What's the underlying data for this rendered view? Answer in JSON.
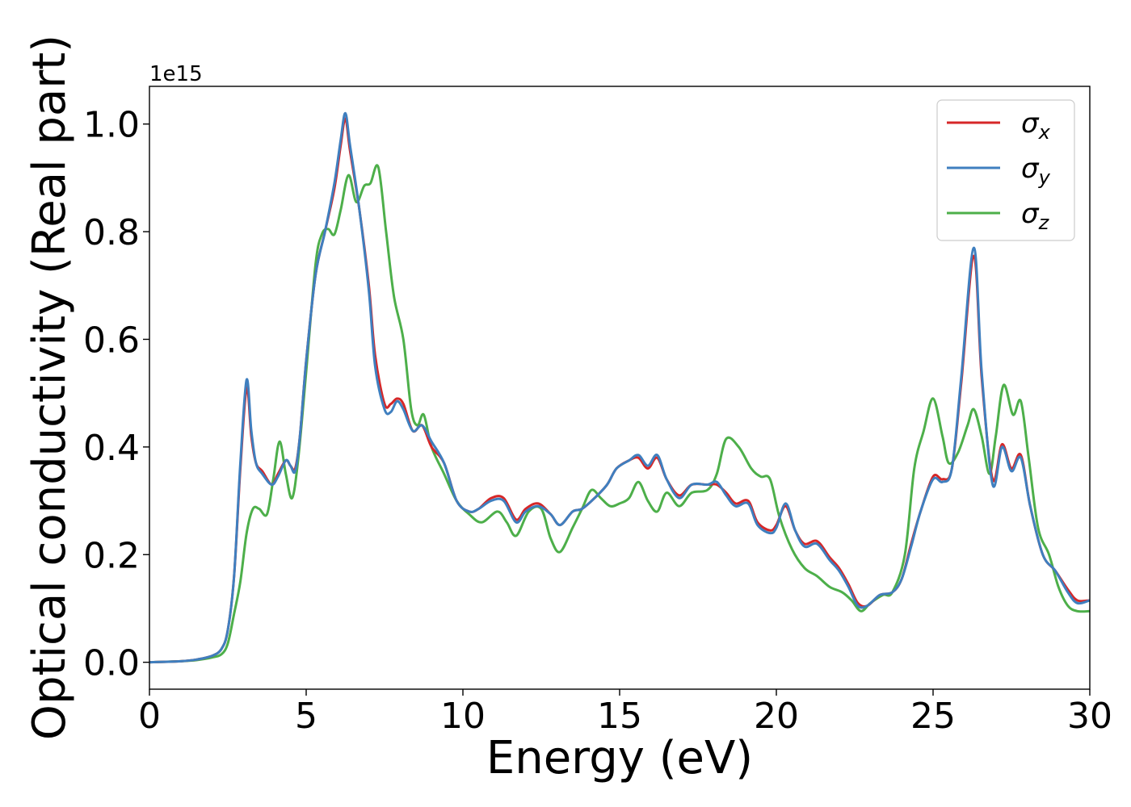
{
  "chart_data": {
    "type": "line",
    "title": "",
    "xlabel": "Energy (eV)",
    "ylabel": "Optical conductivity (Real part)",
    "y_offset_label": "1e15",
    "y_multiplier": 1000000000000000.0,
    "xlim": [
      0,
      30
    ],
    "ylim": [
      -0.05,
      1.07
    ],
    "x_ticks": [
      0,
      5,
      10,
      15,
      20,
      25,
      30
    ],
    "x_tick_labels": [
      "0",
      "5",
      "10",
      "15",
      "20",
      "25",
      "30"
    ],
    "y_ticks": [
      0.0,
      0.2,
      0.4,
      0.6,
      0.8,
      1.0
    ],
    "y_tick_labels": [
      "0.0",
      "0.2",
      "0.4",
      "0.6",
      "0.8",
      "1.0"
    ],
    "grid": false,
    "legend_position": "top-right",
    "series": [
      {
        "name": "σx",
        "legend_symbol": "σ",
        "legend_subscript": "x",
        "color": "#d62728",
        "points": [
          [
            0,
            0.0
          ],
          [
            1,
            0.002
          ],
          [
            1.5,
            0.005
          ],
          [
            2,
            0.012
          ],
          [
            2.3,
            0.025
          ],
          [
            2.5,
            0.06
          ],
          [
            2.7,
            0.16
          ],
          [
            2.9,
            0.36
          ],
          [
            3.1,
            0.51
          ],
          [
            3.25,
            0.42
          ],
          [
            3.4,
            0.37
          ],
          [
            3.6,
            0.355
          ],
          [
            3.9,
            0.33
          ],
          [
            4.1,
            0.35
          ],
          [
            4.35,
            0.375
          ],
          [
            4.5,
            0.365
          ],
          [
            4.65,
            0.36
          ],
          [
            4.8,
            0.42
          ],
          [
            5.0,
            0.56
          ],
          [
            5.3,
            0.72
          ],
          [
            5.6,
            0.8
          ],
          [
            5.9,
            0.88
          ],
          [
            6.1,
            0.96
          ],
          [
            6.25,
            1.01
          ],
          [
            6.4,
            0.95
          ],
          [
            6.7,
            0.84
          ],
          [
            7.0,
            0.7
          ],
          [
            7.2,
            0.57
          ],
          [
            7.5,
            0.48
          ],
          [
            7.7,
            0.48
          ],
          [
            7.9,
            0.49
          ],
          [
            8.1,
            0.48
          ],
          [
            8.4,
            0.43
          ],
          [
            8.7,
            0.44
          ],
          [
            9.0,
            0.4
          ],
          [
            9.4,
            0.37
          ],
          [
            9.8,
            0.3
          ],
          [
            10.2,
            0.28
          ],
          [
            10.5,
            0.285
          ],
          [
            10.9,
            0.305
          ],
          [
            11.3,
            0.305
          ],
          [
            11.7,
            0.265
          ],
          [
            12.0,
            0.285
          ],
          [
            12.4,
            0.295
          ],
          [
            12.8,
            0.275
          ],
          [
            13.1,
            0.255
          ],
          [
            13.5,
            0.28
          ],
          [
            13.8,
            0.285
          ],
          [
            14.2,
            0.305
          ],
          [
            14.6,
            0.33
          ],
          [
            14.9,
            0.36
          ],
          [
            15.3,
            0.375
          ],
          [
            15.6,
            0.38
          ],
          [
            15.9,
            0.36
          ],
          [
            16.2,
            0.38
          ],
          [
            16.5,
            0.34
          ],
          [
            16.9,
            0.31
          ],
          [
            17.3,
            0.33
          ],
          [
            17.8,
            0.33
          ],
          [
            18.1,
            0.33
          ],
          [
            18.4,
            0.315
          ],
          [
            18.7,
            0.295
          ],
          [
            19.1,
            0.3
          ],
          [
            19.4,
            0.26
          ],
          [
            19.8,
            0.245
          ],
          [
            20.0,
            0.255
          ],
          [
            20.3,
            0.29
          ],
          [
            20.6,
            0.245
          ],
          [
            20.9,
            0.22
          ],
          [
            21.3,
            0.225
          ],
          [
            21.7,
            0.195
          ],
          [
            22.0,
            0.175
          ],
          [
            22.3,
            0.145
          ],
          [
            22.6,
            0.11
          ],
          [
            22.9,
            0.105
          ],
          [
            23.3,
            0.125
          ],
          [
            23.7,
            0.13
          ],
          [
            24.0,
            0.155
          ],
          [
            24.3,
            0.22
          ],
          [
            24.6,
            0.28
          ],
          [
            25.0,
            0.345
          ],
          [
            25.3,
            0.34
          ],
          [
            25.6,
            0.36
          ],
          [
            25.9,
            0.52
          ],
          [
            26.3,
            0.755
          ],
          [
            26.55,
            0.53
          ],
          [
            26.9,
            0.34
          ],
          [
            27.2,
            0.405
          ],
          [
            27.5,
            0.36
          ],
          [
            27.8,
            0.385
          ],
          [
            28.1,
            0.29
          ],
          [
            28.5,
            0.2
          ],
          [
            28.9,
            0.17
          ],
          [
            29.3,
            0.135
          ],
          [
            29.6,
            0.115
          ],
          [
            30,
            0.115
          ]
        ]
      },
      {
        "name": "σy",
        "legend_symbol": "σ",
        "legend_subscript": "y",
        "color": "#3f7fbf",
        "points": [
          [
            0,
            0.0
          ],
          [
            1,
            0.002
          ],
          [
            1.5,
            0.005
          ],
          [
            2,
            0.012
          ],
          [
            2.3,
            0.025
          ],
          [
            2.5,
            0.06
          ],
          [
            2.7,
            0.16
          ],
          [
            2.9,
            0.37
          ],
          [
            3.1,
            0.525
          ],
          [
            3.25,
            0.43
          ],
          [
            3.4,
            0.37
          ],
          [
            3.6,
            0.35
          ],
          [
            3.9,
            0.33
          ],
          [
            4.1,
            0.345
          ],
          [
            4.35,
            0.375
          ],
          [
            4.5,
            0.365
          ],
          [
            4.65,
            0.355
          ],
          [
            4.8,
            0.42
          ],
          [
            5.0,
            0.56
          ],
          [
            5.3,
            0.72
          ],
          [
            5.6,
            0.8
          ],
          [
            5.9,
            0.89
          ],
          [
            6.1,
            0.97
          ],
          [
            6.25,
            1.02
          ],
          [
            6.4,
            0.96
          ],
          [
            6.7,
            0.84
          ],
          [
            7.0,
            0.69
          ],
          [
            7.2,
            0.55
          ],
          [
            7.5,
            0.47
          ],
          [
            7.7,
            0.465
          ],
          [
            7.9,
            0.485
          ],
          [
            8.1,
            0.47
          ],
          [
            8.4,
            0.43
          ],
          [
            8.7,
            0.44
          ],
          [
            9.0,
            0.41
          ],
          [
            9.4,
            0.37
          ],
          [
            9.8,
            0.3
          ],
          [
            10.2,
            0.28
          ],
          [
            10.5,
            0.285
          ],
          [
            10.9,
            0.3
          ],
          [
            11.3,
            0.3
          ],
          [
            11.7,
            0.26
          ],
          [
            12.0,
            0.28
          ],
          [
            12.4,
            0.29
          ],
          [
            12.8,
            0.275
          ],
          [
            13.1,
            0.255
          ],
          [
            13.5,
            0.28
          ],
          [
            13.8,
            0.285
          ],
          [
            14.2,
            0.305
          ],
          [
            14.6,
            0.33
          ],
          [
            14.9,
            0.36
          ],
          [
            15.3,
            0.375
          ],
          [
            15.6,
            0.385
          ],
          [
            15.9,
            0.365
          ],
          [
            16.2,
            0.385
          ],
          [
            16.5,
            0.34
          ],
          [
            16.9,
            0.305
          ],
          [
            17.3,
            0.33
          ],
          [
            17.8,
            0.33
          ],
          [
            18.1,
            0.335
          ],
          [
            18.4,
            0.31
          ],
          [
            18.7,
            0.29
          ],
          [
            19.1,
            0.295
          ],
          [
            19.4,
            0.255
          ],
          [
            19.8,
            0.24
          ],
          [
            20.0,
            0.25
          ],
          [
            20.3,
            0.295
          ],
          [
            20.6,
            0.245
          ],
          [
            20.9,
            0.215
          ],
          [
            21.3,
            0.22
          ],
          [
            21.7,
            0.19
          ],
          [
            22.0,
            0.17
          ],
          [
            22.3,
            0.14
          ],
          [
            22.6,
            0.105
          ],
          [
            22.9,
            0.105
          ],
          [
            23.3,
            0.125
          ],
          [
            23.7,
            0.13
          ],
          [
            24.0,
            0.155
          ],
          [
            24.3,
            0.215
          ],
          [
            24.6,
            0.28
          ],
          [
            25.0,
            0.34
          ],
          [
            25.3,
            0.335
          ],
          [
            25.6,
            0.36
          ],
          [
            25.9,
            0.53
          ],
          [
            26.3,
            0.77
          ],
          [
            26.55,
            0.54
          ],
          [
            26.9,
            0.33
          ],
          [
            27.2,
            0.4
          ],
          [
            27.5,
            0.355
          ],
          [
            27.8,
            0.38
          ],
          [
            28.1,
            0.29
          ],
          [
            28.5,
            0.2
          ],
          [
            28.9,
            0.17
          ],
          [
            29.3,
            0.13
          ],
          [
            29.6,
            0.11
          ],
          [
            30,
            0.115
          ]
        ]
      },
      {
        "name": "σz",
        "legend_symbol": "σ",
        "legend_subscript": "z",
        "color": "#4daf4a",
        "points": [
          [
            0,
            0.0
          ],
          [
            1,
            0.002
          ],
          [
            1.5,
            0.004
          ],
          [
            2,
            0.009
          ],
          [
            2.3,
            0.015
          ],
          [
            2.5,
            0.035
          ],
          [
            2.7,
            0.09
          ],
          [
            2.9,
            0.15
          ],
          [
            3.1,
            0.24
          ],
          [
            3.3,
            0.285
          ],
          [
            3.5,
            0.285
          ],
          [
            3.75,
            0.275
          ],
          [
            3.95,
            0.34
          ],
          [
            4.15,
            0.41
          ],
          [
            4.35,
            0.35
          ],
          [
            4.55,
            0.305
          ],
          [
            4.75,
            0.38
          ],
          [
            5.0,
            0.54
          ],
          [
            5.3,
            0.74
          ],
          [
            5.5,
            0.795
          ],
          [
            5.7,
            0.805
          ],
          [
            5.9,
            0.795
          ],
          [
            6.1,
            0.84
          ],
          [
            6.35,
            0.905
          ],
          [
            6.6,
            0.855
          ],
          [
            6.85,
            0.885
          ],
          [
            7.05,
            0.89
          ],
          [
            7.3,
            0.92
          ],
          [
            7.55,
            0.8
          ],
          [
            7.8,
            0.68
          ],
          [
            8.1,
            0.6
          ],
          [
            8.35,
            0.47
          ],
          [
            8.55,
            0.44
          ],
          [
            8.75,
            0.46
          ],
          [
            9.0,
            0.4
          ],
          [
            9.4,
            0.35
          ],
          [
            9.8,
            0.3
          ],
          [
            10.2,
            0.275
          ],
          [
            10.6,
            0.26
          ],
          [
            11.1,
            0.28
          ],
          [
            11.4,
            0.26
          ],
          [
            11.7,
            0.235
          ],
          [
            12.1,
            0.28
          ],
          [
            12.5,
            0.285
          ],
          [
            12.8,
            0.23
          ],
          [
            13.1,
            0.205
          ],
          [
            13.5,
            0.25
          ],
          [
            13.8,
            0.285
          ],
          [
            14.1,
            0.32
          ],
          [
            14.4,
            0.305
          ],
          [
            14.7,
            0.29
          ],
          [
            15.0,
            0.295
          ],
          [
            15.3,
            0.305
          ],
          [
            15.6,
            0.335
          ],
          [
            15.9,
            0.3
          ],
          [
            16.2,
            0.28
          ],
          [
            16.5,
            0.315
          ],
          [
            16.9,
            0.29
          ],
          [
            17.3,
            0.315
          ],
          [
            17.8,
            0.32
          ],
          [
            18.1,
            0.35
          ],
          [
            18.4,
            0.415
          ],
          [
            18.8,
            0.4
          ],
          [
            19.2,
            0.36
          ],
          [
            19.5,
            0.345
          ],
          [
            19.8,
            0.34
          ],
          [
            20.1,
            0.27
          ],
          [
            20.5,
            0.21
          ],
          [
            20.9,
            0.175
          ],
          [
            21.3,
            0.16
          ],
          [
            21.7,
            0.14
          ],
          [
            22.1,
            0.13
          ],
          [
            22.4,
            0.115
          ],
          [
            22.7,
            0.095
          ],
          [
            23.0,
            0.11
          ],
          [
            23.4,
            0.125
          ],
          [
            23.7,
            0.13
          ],
          [
            24.1,
            0.2
          ],
          [
            24.4,
            0.36
          ],
          [
            24.7,
            0.43
          ],
          [
            25.0,
            0.49
          ],
          [
            25.3,
            0.42
          ],
          [
            25.5,
            0.37
          ],
          [
            25.8,
            0.39
          ],
          [
            26.1,
            0.44
          ],
          [
            26.3,
            0.47
          ],
          [
            26.55,
            0.42
          ],
          [
            26.8,
            0.35
          ],
          [
            27.0,
            0.42
          ],
          [
            27.25,
            0.515
          ],
          [
            27.55,
            0.46
          ],
          [
            27.8,
            0.485
          ],
          [
            28.05,
            0.38
          ],
          [
            28.35,
            0.25
          ],
          [
            28.7,
            0.2
          ],
          [
            29.0,
            0.14
          ],
          [
            29.3,
            0.105
          ],
          [
            29.6,
            0.095
          ],
          [
            30,
            0.095
          ]
        ]
      }
    ]
  }
}
